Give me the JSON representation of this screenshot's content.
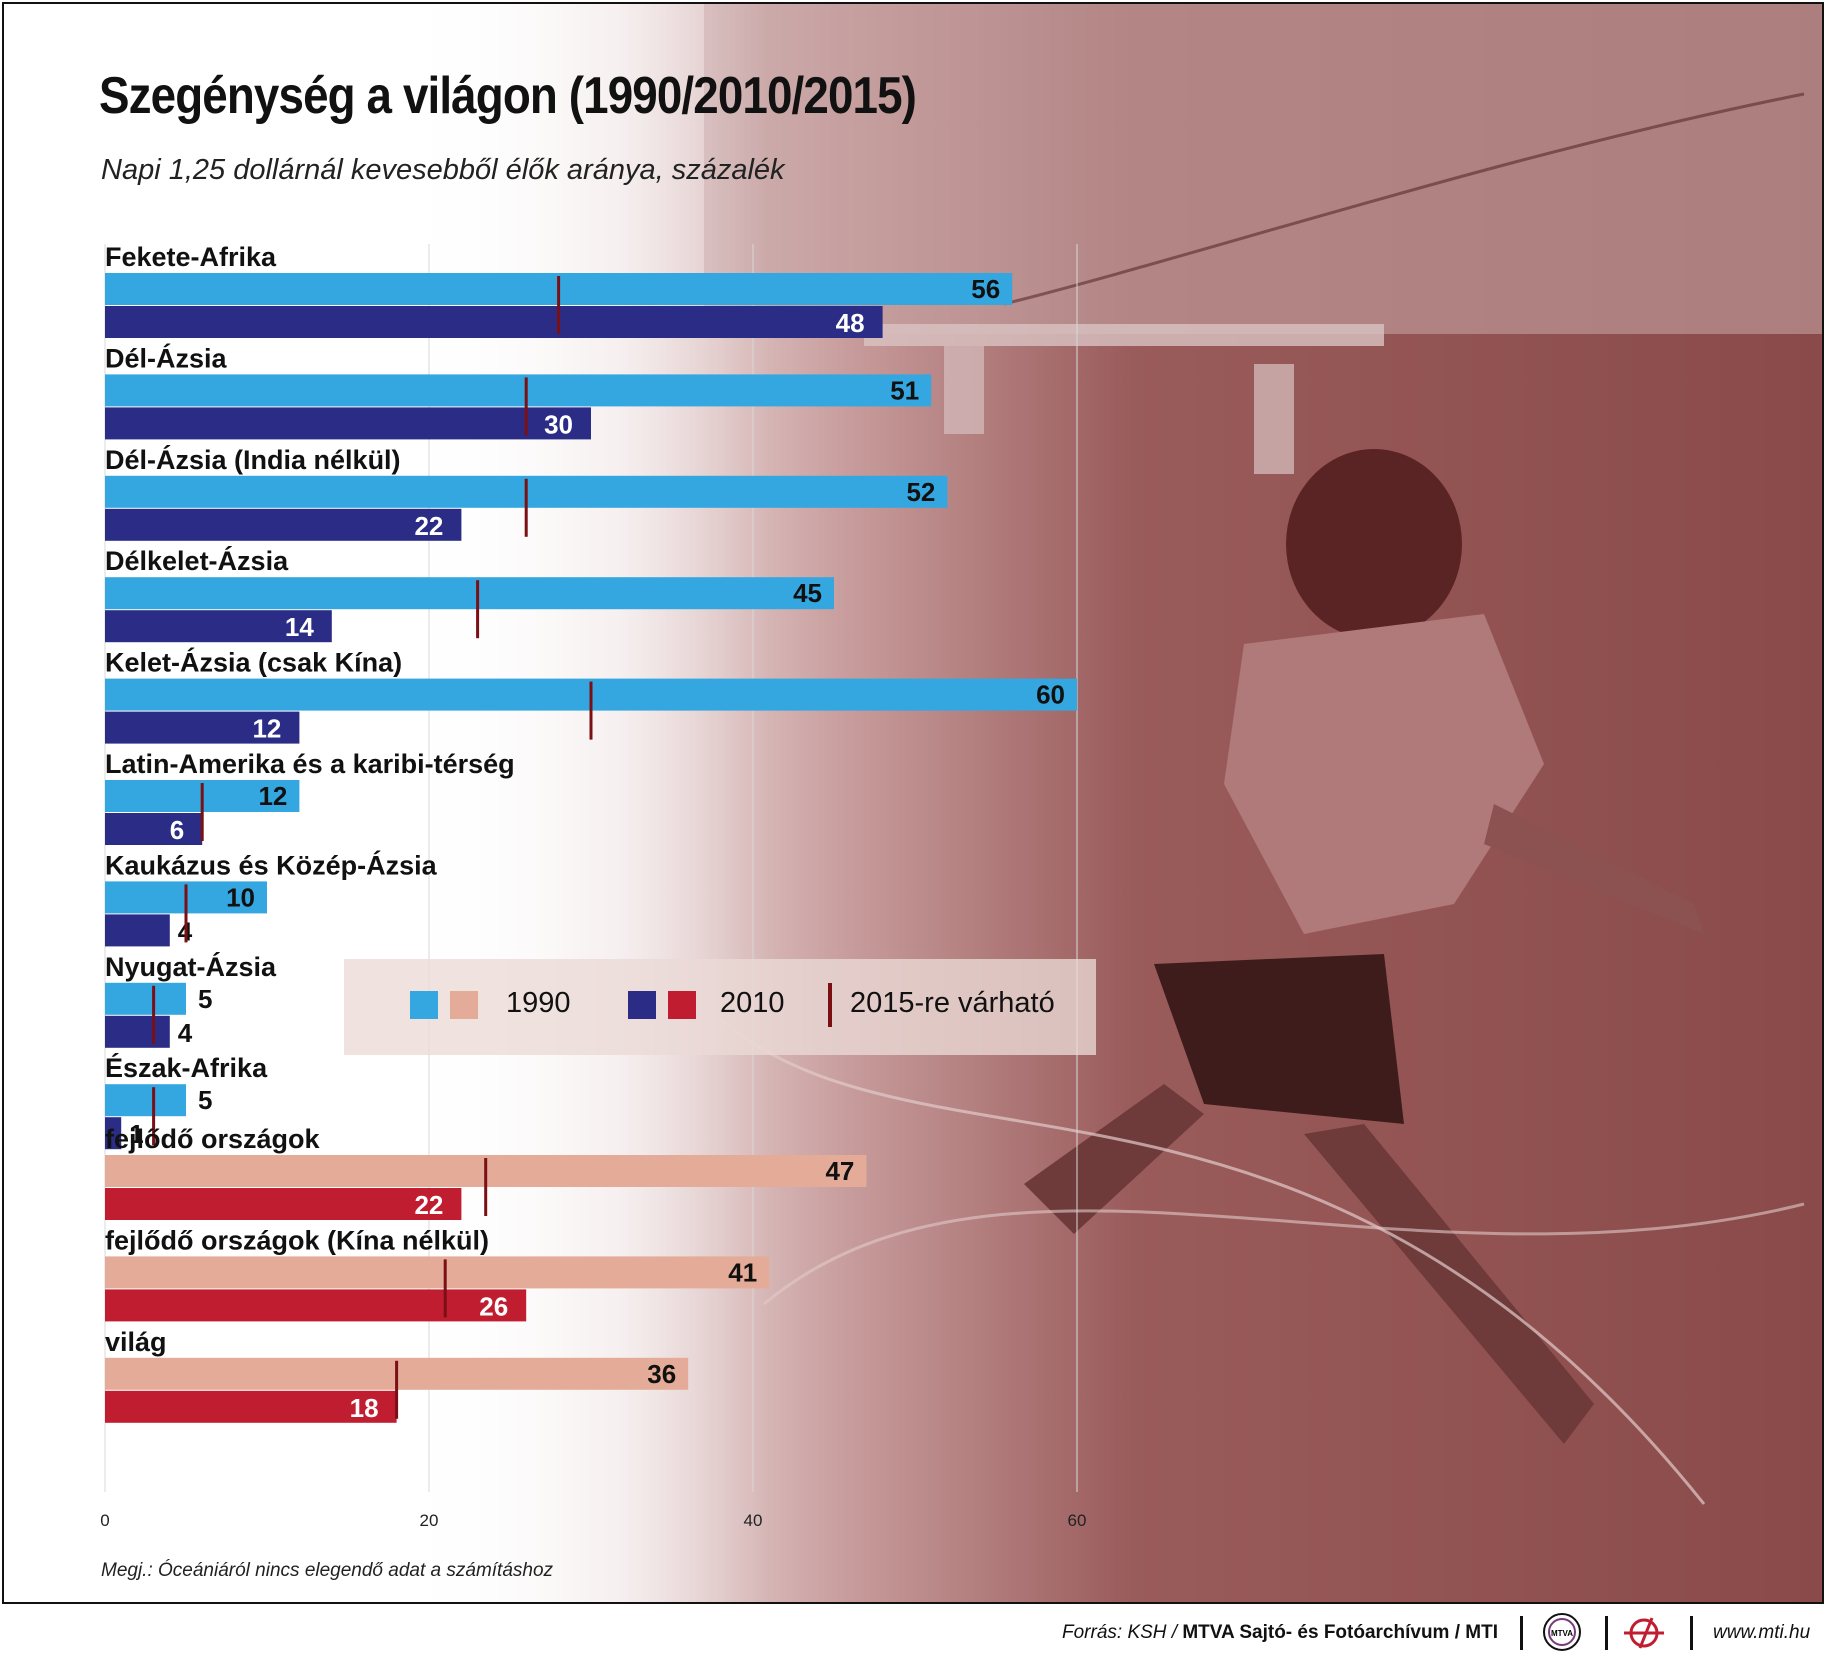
{
  "title": "Szegénység a világon (1990/2010/2015)",
  "subtitle": "Napi 1,25 dollárnál kevesebből élők aránya, százalék",
  "note": "Megj.: Óceániáról nincs elegendő adat a számításhoz",
  "legend": {
    "label_1990": "1990",
    "label_2010": "2010",
    "label_2015": "2015-re várható"
  },
  "colors": {
    "region_1990": "#34a6e0",
    "region_2010": "#2a2c86",
    "aggregate_1990": "#e4ac98",
    "aggregate_2010": "#c11d30",
    "target_2015": "#7a0f14"
  },
  "footer": {
    "source_prefix": "Forrás: KSH /",
    "source_main": "MTVA Sajtó- és Fotóarchívum / MTI",
    "website": "www.mti.hu",
    "logo_text": "MTVA"
  },
  "chart_data": {
    "type": "bar",
    "orientation": "horizontal",
    "title": "Szegénység a világon (1990/2010/2015)",
    "subtitle": "Napi 1,25 dollárnál kevesebből élők aránya, százalék",
    "categories": [
      "Fekete-Afrika",
      "Dél-Ázsia",
      "Dél-Ázsia  (India nélkül)",
      "Délkelet-Ázsia",
      "Kelet-Ázsia (csak Kína)",
      "Latin-Amerika és a karibi-térség",
      "Kaukázus és Közép-Ázsia",
      "Nyugat-Ázsia",
      "Észak-Afrika",
      "fejlődő országok",
      "fejlődő országok (Kína nélkül)",
      "világ"
    ],
    "group": [
      "region",
      "region",
      "region",
      "region",
      "region",
      "region",
      "region",
      "region",
      "region",
      "aggregate",
      "aggregate",
      "aggregate"
    ],
    "series": [
      {
        "name": "1990",
        "values": [
          56,
          51,
          52,
          45,
          60,
          12,
          10,
          5,
          5,
          47,
          41,
          36
        ]
      },
      {
        "name": "2010",
        "values": [
          48,
          30,
          22,
          14,
          12,
          6,
          4,
          4,
          1,
          22,
          26,
          18
        ]
      },
      {
        "name": "2015-re várható",
        "values": [
          28,
          26,
          26,
          23,
          30,
          6,
          5,
          3,
          3,
          23.5,
          21,
          18
        ]
      }
    ],
    "xlim": [
      0,
      60
    ],
    "xticks": [
      "0",
      "20",
      "40",
      "60"
    ],
    "grid": true,
    "legend_position": "middle"
  }
}
